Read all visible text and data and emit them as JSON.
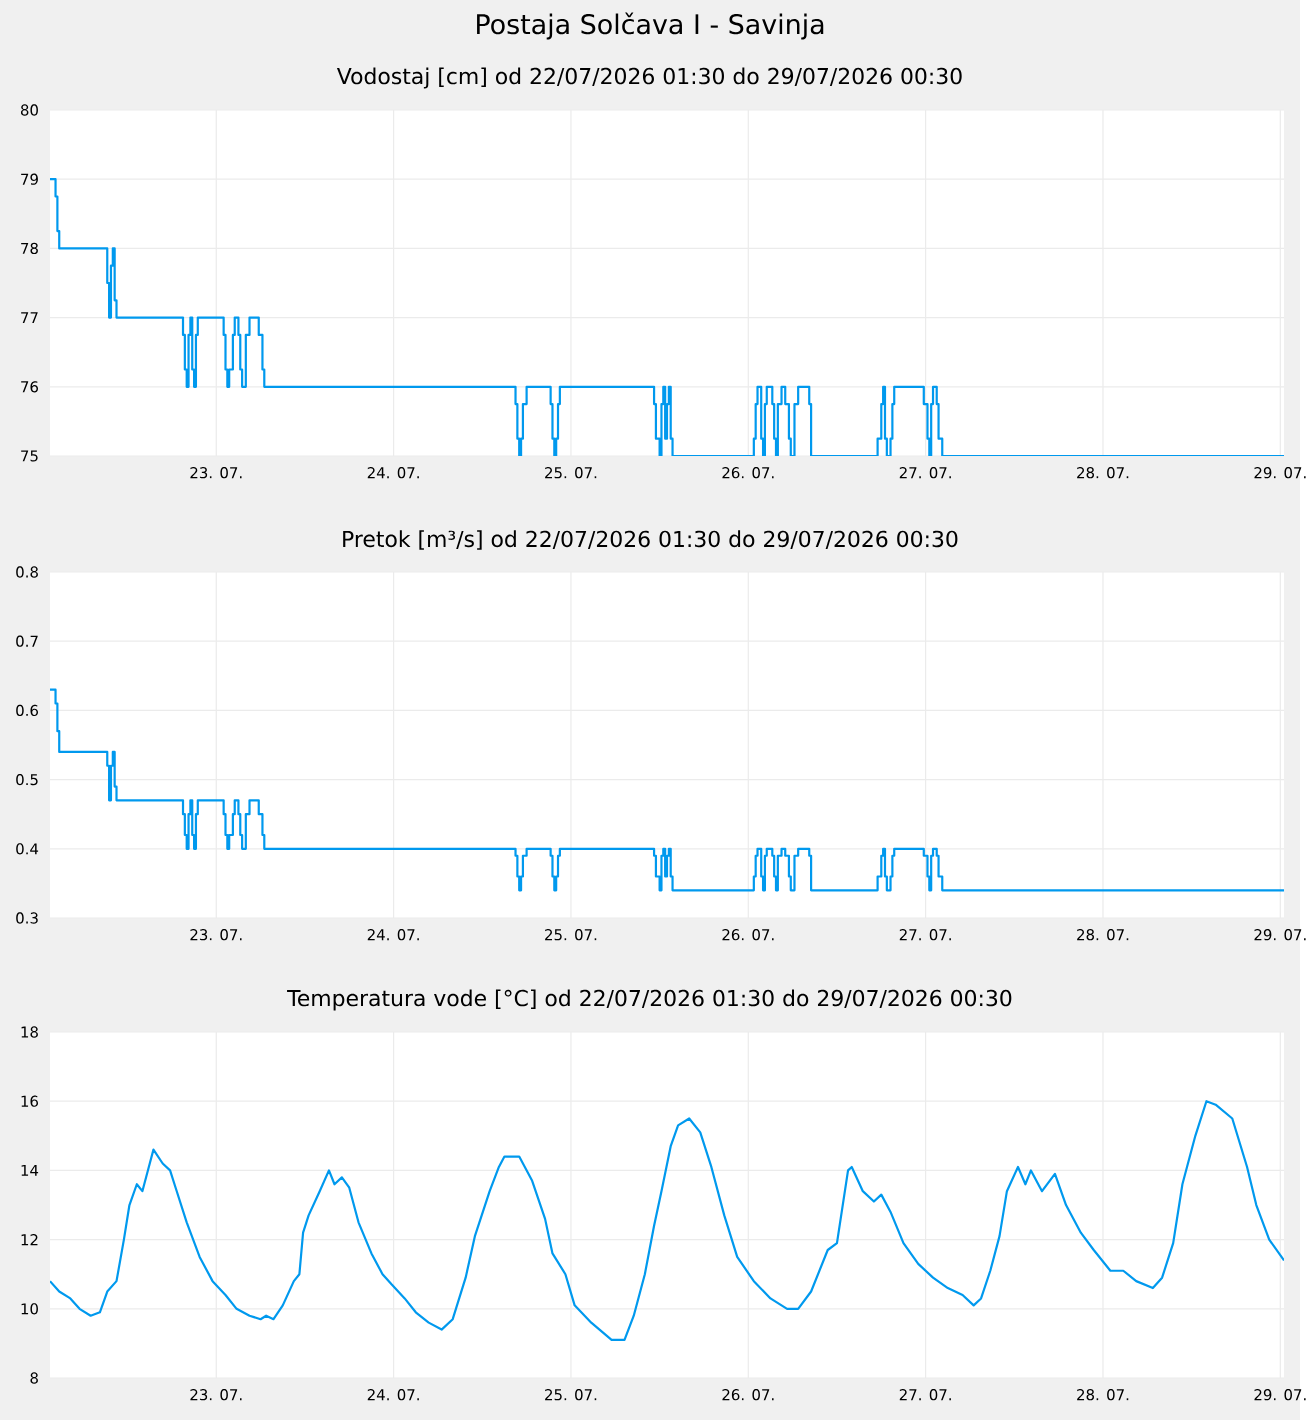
{
  "chart_data": [
    {
      "type": "step",
      "title": "Postaja Solčava I - Savinja",
      "subtitle": "Vodostaj [cm] od 22/07/2026 01:30 do 29/07/2026 00:30",
      "color": "#0099ee",
      "grid": true,
      "xlim": [
        "2026-07-22T01:30",
        "2026-07-29T00:30"
      ],
      "ylim": [
        75,
        80
      ],
      "yticks": [
        75,
        76,
        77,
        78,
        79,
        80
      ],
      "xticks": [
        {
          "value": "2026-07-23",
          "label": "23. 07."
        },
        {
          "value": "2026-07-24",
          "label": "24. 07."
        },
        {
          "value": "2026-07-25",
          "label": "25. 07."
        },
        {
          "value": "2026-07-26",
          "label": "26. 07."
        },
        {
          "value": "2026-07-27",
          "label": "27. 07."
        },
        {
          "value": "2026-07-28",
          "label": "28. 07."
        },
        {
          "value": "2026-07-29",
          "label": "29. 07."
        }
      ],
      "x": [
        "2026-07-22T01:30",
        "2026-07-22T02:15",
        "2026-07-22T02:30",
        "2026-07-22T02:45",
        "2026-07-22T09:15",
        "2026-07-22T09:30",
        "2026-07-22T09:45",
        "2026-07-22T10:00",
        "2026-07-22T10:15",
        "2026-07-22T10:30",
        "2026-07-22T19:30",
        "2026-07-22T19:45",
        "2026-07-22T20:00",
        "2026-07-22T20:15",
        "2026-07-22T20:30",
        "2026-07-22T20:45",
        "2026-07-22T21:00",
        "2026-07-22T21:15",
        "2026-07-22T21:30",
        "2026-07-23T01:00",
        "2026-07-23T01:15",
        "2026-07-23T01:30",
        "2026-07-23T01:45",
        "2026-07-23T02:15",
        "2026-07-23T02:30",
        "2026-07-23T03:00",
        "2026-07-23T03:15",
        "2026-07-23T03:30",
        "2026-07-23T04:00",
        "2026-07-23T04:30",
        "2026-07-23T05:45",
        "2026-07-23T06:15",
        "2026-07-23T06:30",
        "2026-07-24T16:30",
        "2026-07-24T16:45",
        "2026-07-24T17:00",
        "2026-07-24T17:15",
        "2026-07-24T17:30",
        "2026-07-24T18:00",
        "2026-07-24T21:15",
        "2026-07-24T21:30",
        "2026-07-24T21:45",
        "2026-07-24T22:00",
        "2026-07-24T22:15",
        "2026-07-24T22:30",
        "2026-07-25T11:15",
        "2026-07-25T11:30",
        "2026-07-25T12:00",
        "2026-07-25T12:15",
        "2026-07-25T12:30",
        "2026-07-25T12:45",
        "2026-07-25T13:00",
        "2026-07-25T13:15",
        "2026-07-25T13:30",
        "2026-07-25T13:45",
        "2026-07-26T00:45",
        "2026-07-26T01:00",
        "2026-07-26T01:15",
        "2026-07-26T01:45",
        "2026-07-26T02:00",
        "2026-07-26T02:15",
        "2026-07-26T02:30",
        "2026-07-26T03:15",
        "2026-07-26T03:30",
        "2026-07-26T03:45",
        "2026-07-26T04:00",
        "2026-07-26T04:30",
        "2026-07-26T05:00",
        "2026-07-26T05:30",
        "2026-07-26T05:45",
        "2026-07-26T06:15",
        "2026-07-26T06:45",
        "2026-07-26T08:15",
        "2026-07-26T08:30",
        "2026-07-26T17:30",
        "2026-07-26T18:00",
        "2026-07-26T18:15",
        "2026-07-26T18:30",
        "2026-07-26T18:45",
        "2026-07-26T19:15",
        "2026-07-26T19:30",
        "2026-07-26T19:45",
        "2026-07-26T23:45",
        "2026-07-27T00:15",
        "2026-07-27T00:30",
        "2026-07-27T00:45",
        "2026-07-27T01:00",
        "2026-07-27T01:30",
        "2026-07-27T01:45",
        "2026-07-27T02:15",
        "2026-07-29T00:30"
      ],
      "values": [
        79,
        78.75,
        78.25,
        78,
        77.5,
        77,
        77.75,
        78,
        77.25,
        77,
        76.75,
        76.25,
        76,
        76.75,
        77,
        76.25,
        76,
        76.75,
        77,
        76.75,
        76.25,
        76,
        76.25,
        76.75,
        77,
        76.75,
        76.25,
        76,
        76.75,
        77,
        76.75,
        76.25,
        76,
        75.75,
        75.25,
        75,
        75.25,
        75.75,
        76,
        75.75,
        75.25,
        75,
        75.25,
        75.75,
        76,
        75.75,
        75.25,
        75,
        75.75,
        76,
        75.25,
        75.75,
        76,
        75.25,
        75,
        75.25,
        75.75,
        76,
        75.25,
        75,
        75.75,
        76,
        75.75,
        75.25,
        75,
        75.75,
        76,
        75.75,
        75.25,
        75,
        75.75,
        76,
        75.75,
        75,
        75.25,
        75.75,
        76,
        75.25,
        75,
        75.25,
        75.75,
        76,
        75.75,
        75.25,
        75,
        75.75,
        76,
        75.75,
        75.25,
        75,
        75
      ]
    },
    {
      "type": "step",
      "title": "Pretok [m³/s] od 22/07/2026 01:30 do 29/07/2026 00:30",
      "color": "#0099ee",
      "grid": true,
      "xlim": [
        "2026-07-22T01:30",
        "2026-07-29T00:30"
      ],
      "ylim": [
        0.3,
        0.8
      ],
      "yticks": [
        0.3,
        0.4,
        0.5,
        0.6,
        0.7,
        0.8
      ],
      "xticks": [
        {
          "value": "2026-07-23",
          "label": "23. 07."
        },
        {
          "value": "2026-07-24",
          "label": "24. 07."
        },
        {
          "value": "2026-07-25",
          "label": "25. 07."
        },
        {
          "value": "2026-07-26",
          "label": "26. 07."
        },
        {
          "value": "2026-07-27",
          "label": "27. 07."
        },
        {
          "value": "2026-07-28",
          "label": "28. 07."
        },
        {
          "value": "2026-07-29",
          "label": "29. 07."
        }
      ],
      "x": [
        "2026-07-22T01:30",
        "2026-07-22T02:15",
        "2026-07-22T02:30",
        "2026-07-22T02:45",
        "2026-07-22T09:15",
        "2026-07-22T09:30",
        "2026-07-22T09:45",
        "2026-07-22T10:00",
        "2026-07-22T10:15",
        "2026-07-22T10:30",
        "2026-07-22T19:30",
        "2026-07-22T19:45",
        "2026-07-22T20:00",
        "2026-07-22T20:15",
        "2026-07-22T20:30",
        "2026-07-22T20:45",
        "2026-07-22T21:00",
        "2026-07-22T21:15",
        "2026-07-22T21:30",
        "2026-07-23T01:00",
        "2026-07-23T01:15",
        "2026-07-23T01:30",
        "2026-07-23T01:45",
        "2026-07-23T02:15",
        "2026-07-23T02:30",
        "2026-07-23T03:00",
        "2026-07-23T03:15",
        "2026-07-23T03:30",
        "2026-07-23T04:00",
        "2026-07-23T04:30",
        "2026-07-23T05:45",
        "2026-07-23T06:15",
        "2026-07-23T06:30",
        "2026-07-24T16:30",
        "2026-07-24T16:45",
        "2026-07-24T17:00",
        "2026-07-24T17:15",
        "2026-07-24T17:30",
        "2026-07-24T18:00",
        "2026-07-24T21:15",
        "2026-07-24T21:30",
        "2026-07-24T21:45",
        "2026-07-24T22:00",
        "2026-07-24T22:15",
        "2026-07-24T22:30",
        "2026-07-25T11:15",
        "2026-07-25T11:30",
        "2026-07-25T12:00",
        "2026-07-25T12:15",
        "2026-07-25T12:30",
        "2026-07-25T12:45",
        "2026-07-25T13:00",
        "2026-07-25T13:15",
        "2026-07-25T13:30",
        "2026-07-25T13:45",
        "2026-07-26T00:45",
        "2026-07-26T01:00",
        "2026-07-26T01:15",
        "2026-07-26T01:45",
        "2026-07-26T02:00",
        "2026-07-26T02:15",
        "2026-07-26T02:30",
        "2026-07-26T03:15",
        "2026-07-26T03:30",
        "2026-07-26T03:45",
        "2026-07-26T04:00",
        "2026-07-26T04:30",
        "2026-07-26T05:00",
        "2026-07-26T05:30",
        "2026-07-26T05:45",
        "2026-07-26T06:15",
        "2026-07-26T06:45",
        "2026-07-26T08:15",
        "2026-07-26T08:30",
        "2026-07-26T17:30",
        "2026-07-26T18:00",
        "2026-07-26T18:15",
        "2026-07-26T18:30",
        "2026-07-26T18:45",
        "2026-07-26T19:15",
        "2026-07-26T19:30",
        "2026-07-26T19:45",
        "2026-07-26T23:45",
        "2026-07-27T00:15",
        "2026-07-27T00:30",
        "2026-07-27T00:45",
        "2026-07-27T01:00",
        "2026-07-27T01:30",
        "2026-07-27T01:45",
        "2026-07-27T02:15",
        "2026-07-29T00:30"
      ],
      "values": [
        0.63,
        0.61,
        0.57,
        0.54,
        0.52,
        0.47,
        0.52,
        0.54,
        0.49,
        0.47,
        0.45,
        0.42,
        0.4,
        0.45,
        0.47,
        0.42,
        0.4,
        0.45,
        0.47,
        0.45,
        0.42,
        0.4,
        0.42,
        0.45,
        0.47,
        0.45,
        0.42,
        0.4,
        0.45,
        0.47,
        0.45,
        0.42,
        0.4,
        0.39,
        0.36,
        0.34,
        0.36,
        0.39,
        0.4,
        0.39,
        0.36,
        0.34,
        0.36,
        0.39,
        0.4,
        0.39,
        0.36,
        0.34,
        0.39,
        0.4,
        0.36,
        0.39,
        0.4,
        0.36,
        0.34,
        0.36,
        0.39,
        0.4,
        0.36,
        0.34,
        0.39,
        0.4,
        0.39,
        0.36,
        0.34,
        0.39,
        0.4,
        0.39,
        0.36,
        0.34,
        0.39,
        0.4,
        0.39,
        0.34,
        0.36,
        0.39,
        0.4,
        0.36,
        0.34,
        0.36,
        0.39,
        0.4,
        0.39,
        0.36,
        0.34,
        0.39,
        0.4,
        0.39,
        0.36,
        0.34,
        0.34
      ]
    },
    {
      "type": "line",
      "title": "Temperatura vode [°C] od 22/07/2026 01:30 do 29/07/2026 00:30",
      "color": "#0099ee",
      "grid": true,
      "xlim": [
        "2026-07-22T01:30",
        "2026-07-29T00:30"
      ],
      "ylim": [
        8,
        18
      ],
      "yticks": [
        8,
        10,
        12,
        14,
        16,
        18
      ],
      "xticks": [
        {
          "value": "2026-07-23",
          "label": "23. 07."
        },
        {
          "value": "2026-07-24",
          "label": "24. 07."
        },
        {
          "value": "2026-07-25",
          "label": "25. 07."
        },
        {
          "value": "2026-07-26",
          "label": "26. 07."
        },
        {
          "value": "2026-07-27",
          "label": "27. 07."
        },
        {
          "value": "2026-07-28",
          "label": "28. 07."
        },
        {
          "value": "2026-07-29",
          "label": "29. 07."
        }
      ],
      "x": [
        "2026-07-22T01:30",
        "2026-07-22T02:45",
        "2026-07-22T04:15",
        "2026-07-22T05:30",
        "2026-07-22T07:00",
        "2026-07-22T08:15",
        "2026-07-22T09:15",
        "2026-07-22T10:30",
        "2026-07-22T11:30",
        "2026-07-22T12:15",
        "2026-07-22T13:15",
        "2026-07-22T14:00",
        "2026-07-22T15:00",
        "2026-07-22T15:30",
        "2026-07-22T16:45",
        "2026-07-22T17:45",
        "2026-07-22T18:30",
        "2026-07-22T20:00",
        "2026-07-22T21:45",
        "2026-07-22T23:30",
        "2026-07-23T01:15",
        "2026-07-23T02:45",
        "2026-07-23T04:30",
        "2026-07-23T06:00",
        "2026-07-23T06:45",
        "2026-07-23T07:45",
        "2026-07-23T09:00",
        "2026-07-23T10:30",
        "2026-07-23T11:15",
        "2026-07-23T11:45",
        "2026-07-23T12:30",
        "2026-07-23T14:00",
        "2026-07-23T15:15",
        "2026-07-23T16:00",
        "2026-07-23T17:00",
        "2026-07-23T18:00",
        "2026-07-23T19:15",
        "2026-07-23T21:00",
        "2026-07-23T22:30",
        "2026-07-23T23:45",
        "2026-07-24T01:30",
        "2026-07-24T03:00",
        "2026-07-24T04:45",
        "2026-07-24T06:30",
        "2026-07-24T08:00",
        "2026-07-24T09:45",
        "2026-07-24T11:00",
        "2026-07-24T13:00",
        "2026-07-24T14:15",
        "2026-07-24T15:00",
        "2026-07-24T17:00",
        "2026-07-24T18:45",
        "2026-07-24T20:30",
        "2026-07-24T21:30",
        "2026-07-24T23:15",
        "2026-07-25T00:30",
        "2026-07-25T02:45",
        "2026-07-25T05:30",
        "2026-07-25T07:15",
        "2026-07-25T08:30",
        "2026-07-25T10:00",
        "2026-07-25T11:15",
        "2026-07-25T12:15",
        "2026-07-25T13:30",
        "2026-07-25T14:30",
        "2026-07-25T16:00",
        "2026-07-25T17:30",
        "2026-07-25T19:00",
        "2026-07-25T20:45",
        "2026-07-25T22:30",
        "2026-07-26T00:45",
        "2026-07-26T03:00",
        "2026-07-26T05:15",
        "2026-07-26T06:45",
        "2026-07-26T08:30",
        "2026-07-26T10:45",
        "2026-07-26T12:00",
        "2026-07-26T13:30",
        "2026-07-26T14:00",
        "2026-07-26T15:30",
        "2026-07-26T17:00",
        "2026-07-26T18:00",
        "2026-07-26T19:15",
        "2026-07-26T21:00",
        "2026-07-26T23:00",
        "2026-07-27T01:00",
        "2026-07-27T03:00",
        "2026-07-27T05:00",
        "2026-07-27T06:30",
        "2026-07-27T07:30",
        "2026-07-27T08:45",
        "2026-07-27T10:00",
        "2026-07-27T11:00",
        "2026-07-27T12:30",
        "2026-07-27T13:30",
        "2026-07-27T14:15",
        "2026-07-27T15:45",
        "2026-07-27T17:30",
        "2026-07-27T19:00",
        "2026-07-27T21:00",
        "2026-07-27T22:45",
        "2026-07-28T01:00",
        "2026-07-28T02:45",
        "2026-07-28T04:30",
        "2026-07-28T06:45",
        "2026-07-28T08:00",
        "2026-07-28T09:30",
        "2026-07-28T10:45",
        "2026-07-28T12:30",
        "2026-07-28T14:00",
        "2026-07-28T15:15",
        "2026-07-28T17:30",
        "2026-07-28T19:30",
        "2026-07-28T20:45",
        "2026-07-28T22:30",
        "2026-07-29T00:30"
      ],
      "values": [
        10.8,
        10.5,
        10.3,
        10.0,
        9.8,
        9.9,
        10.5,
        10.8,
        12.0,
        13.0,
        13.6,
        13.4,
        14.2,
        14.6,
        14.2,
        14.0,
        13.5,
        12.5,
        11.5,
        10.8,
        10.4,
        10.0,
        9.8,
        9.7,
        9.8,
        9.7,
        10.1,
        10.8,
        11.0,
        12.2,
        12.7,
        13.4,
        14.0,
        13.6,
        13.8,
        13.5,
        12.5,
        11.6,
        11.0,
        10.7,
        10.3,
        9.9,
        9.6,
        9.4,
        9.7,
        10.9,
        12.1,
        13.4,
        14.1,
        14.4,
        14.4,
        13.7,
        12.6,
        11.6,
        11.0,
        10.1,
        9.6,
        9.1,
        9.1,
        9.8,
        11.0,
        12.4,
        13.4,
        14.7,
        15.3,
        15.5,
        15.1,
        14.1,
        12.7,
        11.5,
        10.8,
        10.3,
        10.0,
        10.0,
        10.5,
        11.7,
        11.9,
        14.0,
        14.1,
        13.4,
        13.1,
        13.3,
        12.8,
        11.9,
        11.3,
        10.9,
        10.6,
        10.4,
        10.1,
        10.3,
        11.1,
        12.1,
        13.4,
        14.1,
        13.6,
        14.0,
        13.4,
        13.9,
        13.0,
        12.2,
        11.7,
        11.1,
        11.1,
        10.8,
        10.6,
        10.9,
        11.9,
        13.6,
        15.0,
        16.0,
        15.9,
        15.5,
        14.1,
        13.0,
        12.0,
        11.4
      ]
    }
  ]
}
